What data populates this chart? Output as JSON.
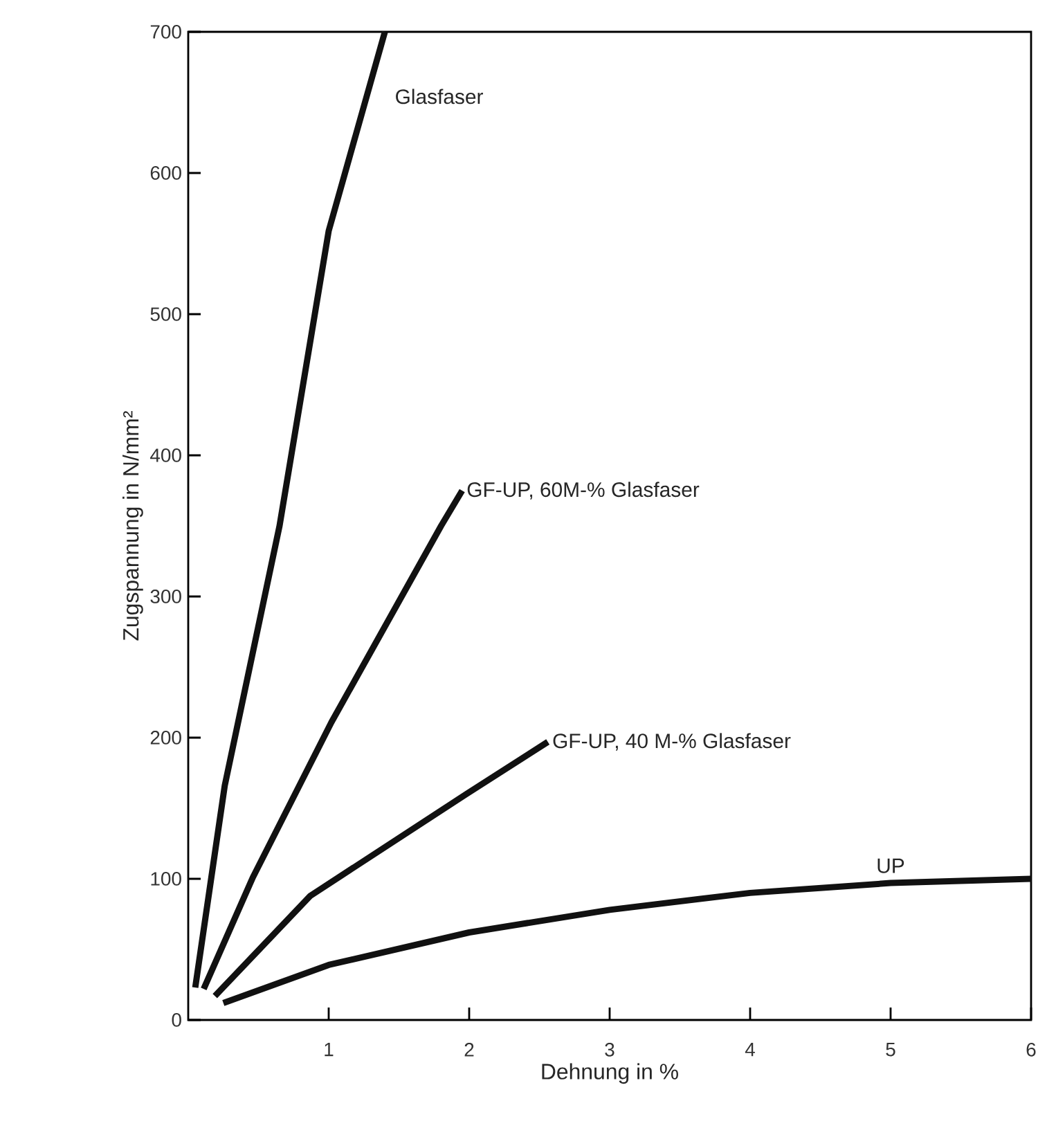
{
  "chart_data": {
    "type": "line",
    "xlabel": "Dehnung in %",
    "ylabel": "Zugspannung in N/mm²",
    "xlim": [
      0,
      6
    ],
    "ylim": [
      0,
      700
    ],
    "xticks": [
      1,
      2,
      3,
      4,
      5,
      6
    ],
    "yticks": [
      0,
      100,
      200,
      300,
      400,
      500,
      600,
      700
    ],
    "grid": false,
    "marker": "none",
    "line_style": "solid",
    "series": [
      {
        "name": "Glasfaser",
        "color": "#111111",
        "x": [
          0.05,
          0.26,
          0.65,
          1.0,
          1.4
        ],
        "values": [
          23,
          166,
          350,
          559,
          700
        ]
      },
      {
        "name": "GF-UP, 60M-% Glasfaser",
        "color": "#111111",
        "x": [
          0.11,
          0.46,
          1.02,
          1.8,
          1.95
        ],
        "values": [
          22,
          101,
          211,
          350,
          375
        ]
      },
      {
        "name": "GF-UP, 40 M-% Glasfaser",
        "color": "#111111",
        "x": [
          0.19,
          0.87,
          1.98,
          2.56
        ],
        "values": [
          17,
          88,
          160,
          197
        ]
      },
      {
        "name": "UP",
        "color": "#111111",
        "x": [
          0.25,
          1,
          2,
          3,
          4,
          5,
          6
        ],
        "values": [
          12,
          39,
          62,
          78,
          90,
          97,
          100
        ]
      }
    ]
  }
}
